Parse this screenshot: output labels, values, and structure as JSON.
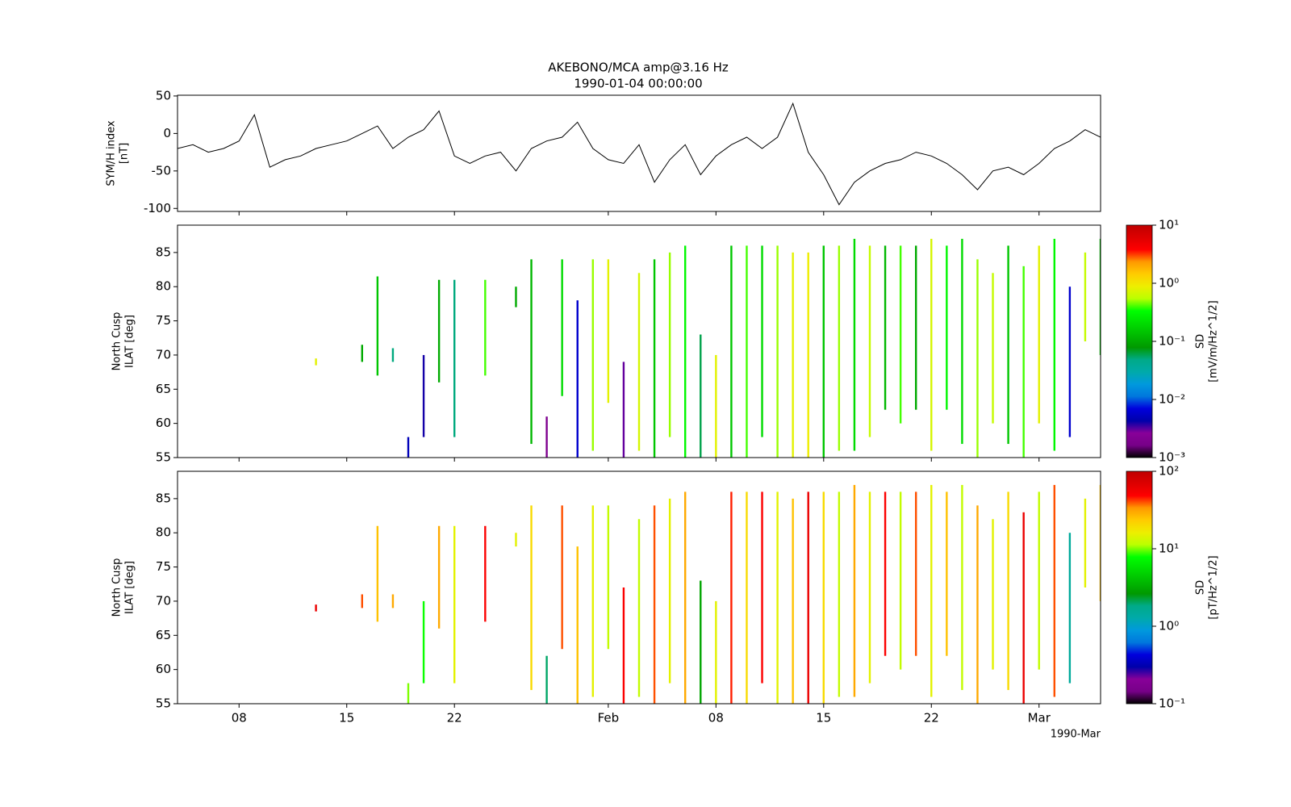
{
  "chart_data": [
    {
      "type": "line",
      "title": "AKEBONO/MCA amp@3.16 Hz",
      "subtitle": "1990-01-04 00:00:00",
      "ylabel": [
        "SYM/H index",
        "[nT]"
      ],
      "color": "#000000",
      "x": [
        "1990-01-04",
        "1990-01-05",
        "1990-01-06",
        "1990-01-07",
        "1990-01-08",
        "1990-01-09",
        "1990-01-10",
        "1990-01-11",
        "1990-01-12",
        "1990-01-13",
        "1990-01-14",
        "1990-01-15",
        "1990-01-16",
        "1990-01-17",
        "1990-01-18",
        "1990-01-19",
        "1990-01-20",
        "1990-01-21",
        "1990-01-22",
        "1990-01-23",
        "1990-01-24",
        "1990-01-25",
        "1990-01-26",
        "1990-01-27",
        "1990-01-28",
        "1990-01-29",
        "1990-01-30",
        "1990-01-31",
        "1990-02-01",
        "1990-02-02",
        "1990-02-03",
        "1990-02-04",
        "1990-02-05",
        "1990-02-06",
        "1990-02-07",
        "1990-02-08",
        "1990-02-09",
        "1990-02-10",
        "1990-02-11",
        "1990-02-12",
        "1990-02-13",
        "1990-02-14",
        "1990-02-15",
        "1990-02-16",
        "1990-02-17",
        "1990-02-18",
        "1990-02-19",
        "1990-02-20",
        "1990-02-21",
        "1990-02-22",
        "1990-02-23",
        "1990-02-24",
        "1990-02-25",
        "1990-02-26",
        "1990-02-27",
        "1990-02-28",
        "1990-03-01",
        "1990-03-02",
        "1990-03-03",
        "1990-03-04",
        "1990-03-05"
      ],
      "values": [
        -20,
        -15,
        -25,
        -20,
        -10,
        25,
        -45,
        -35,
        -30,
        -20,
        -15,
        -10,
        0,
        10,
        -20,
        -5,
        5,
        30,
        -30,
        -40,
        -30,
        -25,
        -50,
        -20,
        -10,
        -5,
        15,
        -20,
        -35,
        -40,
        -15,
        -65,
        -35,
        -15,
        -55,
        -30,
        -15,
        -5,
        -20,
        -5,
        40,
        -25,
        -55,
        -95,
        -65,
        -50,
        -40,
        -35,
        -25,
        -30,
        -40,
        -55,
        -75,
        -50,
        -45,
        -55,
        -40,
        -20,
        -10,
        5,
        -5
      ],
      "ylim": [
        -104,
        51
      ],
      "yticks": [
        -100,
        -50,
        0,
        50
      ]
    },
    {
      "type": "spectrogram",
      "ylabel": [
        "North Cusp",
        "ILAT [deg]"
      ],
      "clabel": [
        "SD",
        "[mV/m/Hz^1/2]"
      ],
      "colormap": "nipy_spectral",
      "cscale": "log",
      "clim": [
        0.001,
        10
      ],
      "cticks": [
        {
          "value": 0.001,
          "label": "10⁻³"
        },
        {
          "value": 0.01,
          "label": "10⁻²"
        },
        {
          "value": 0.1,
          "label": "10⁻¹"
        },
        {
          "value": 1,
          "label": "10⁰"
        },
        {
          "value": 10,
          "label": "10¹"
        }
      ],
      "x": [
        "1990-01-13",
        "1990-01-16",
        "1990-01-17",
        "1990-01-18",
        "1990-01-19",
        "1990-01-20",
        "1990-01-21",
        "1990-01-22",
        "1990-01-24",
        "1990-01-26",
        "1990-01-27",
        "1990-01-28",
        "1990-01-29",
        "1990-01-30",
        "1990-01-31",
        "1990-02-01",
        "1990-02-02",
        "1990-02-03",
        "1990-02-04",
        "1990-02-05",
        "1990-02-06",
        "1990-02-07",
        "1990-02-08",
        "1990-02-09",
        "1990-02-10",
        "1990-02-11",
        "1990-02-12",
        "1990-02-13",
        "1990-02-14",
        "1990-02-15",
        "1990-02-16",
        "1990-02-17",
        "1990-02-18",
        "1990-02-19",
        "1990-02-20",
        "1990-02-21",
        "1990-02-22",
        "1990-02-23",
        "1990-02-24",
        "1990-02-25",
        "1990-02-26",
        "1990-02-27",
        "1990-02-28",
        "1990-03-01",
        "1990-03-02",
        "1990-03-03",
        "1990-03-04",
        "1990-03-05"
      ],
      "y0": [
        68.5,
        69,
        67,
        69,
        55,
        58,
        66,
        58,
        67,
        77,
        57,
        55,
        64,
        55,
        56,
        63,
        55,
        56,
        55,
        58,
        55,
        55,
        55,
        55,
        55,
        58,
        55,
        55,
        55,
        55,
        56,
        56,
        58,
        62,
        60,
        62,
        56,
        62,
        57,
        55,
        60,
        57,
        55,
        60,
        56,
        58,
        72,
        70
      ],
      "y1": [
        69.5,
        71.5,
        81.5,
        71,
        58,
        70,
        81,
        81,
        81,
        80,
        84,
        61,
        84,
        78,
        84,
        84,
        69,
        82,
        84,
        85,
        86,
        73,
        70,
        86,
        86,
        86,
        86,
        85,
        85,
        86,
        86,
        87,
        86,
        86,
        86,
        86,
        87,
        86,
        87,
        84,
        82,
        86,
        83,
        86,
        87,
        80,
        85,
        87
      ],
      "values": [
        0.8,
        0.1,
        0.15,
        0.05,
        0.005,
        0.004,
        0.1,
        0.05,
        0.4,
        0.1,
        0.12,
        0.002,
        0.2,
        0.006,
        0.5,
        0.8,
        0.003,
        0.7,
        0.15,
        0.5,
        0.3,
        0.06,
        0.8,
        0.15,
        0.4,
        0.2,
        0.5,
        0.8,
        0.9,
        0.15,
        0.5,
        0.2,
        0.6,
        0.12,
        0.4,
        0.1,
        0.7,
        0.3,
        0.2,
        0.5,
        0.6,
        0.15,
        0.4,
        0.8,
        0.3,
        0.006,
        0.6,
        0.15
      ],
      "ylim": [
        55,
        89
      ],
      "yticks": [
        55,
        60,
        65,
        70,
        75,
        80,
        85
      ]
    },
    {
      "type": "spectrogram",
      "ylabel": [
        "North Cusp",
        "ILAT [deg]"
      ],
      "clabel": [
        "SD",
        "[pT/Hz^1/2]"
      ],
      "colormap": "nipy_spectral",
      "cscale": "log",
      "clim": [
        0.1,
        100
      ],
      "cticks": [
        {
          "value": 0.1,
          "label": "10⁻¹"
        },
        {
          "value": 1,
          "label": "10⁰"
        },
        {
          "value": 10,
          "label": "10¹"
        },
        {
          "value": 100,
          "label": "10²"
        }
      ],
      "x": [
        "1990-01-13",
        "1990-01-16",
        "1990-01-17",
        "1990-01-18",
        "1990-01-19",
        "1990-01-20",
        "1990-01-21",
        "1990-01-22",
        "1990-01-24",
        "1990-01-26",
        "1990-01-27",
        "1990-01-28",
        "1990-01-29",
        "1990-01-30",
        "1990-01-31",
        "1990-02-01",
        "1990-02-02",
        "1990-02-03",
        "1990-02-04",
        "1990-02-05",
        "1990-02-06",
        "1990-02-07",
        "1990-02-08",
        "1990-02-09",
        "1990-02-10",
        "1990-02-11",
        "1990-02-12",
        "1990-02-13",
        "1990-02-14",
        "1990-02-15",
        "1990-02-16",
        "1990-02-17",
        "1990-02-18",
        "1990-02-19",
        "1990-02-20",
        "1990-02-21",
        "1990-02-22",
        "1990-02-23",
        "1990-02-24",
        "1990-02-25",
        "1990-02-26",
        "1990-02-27",
        "1990-02-28",
        "1990-03-01",
        "1990-03-02",
        "1990-03-03",
        "1990-03-04",
        "1990-03-05"
      ],
      "y0": [
        68.5,
        69,
        67,
        69,
        55,
        58,
        66,
        58,
        67,
        78,
        57,
        55,
        63,
        55,
        56,
        63,
        55,
        56,
        55,
        58,
        55,
        55,
        55,
        55,
        55,
        58,
        55,
        55,
        55,
        55,
        56,
        56,
        58,
        62,
        60,
        62,
        56,
        62,
        57,
        55,
        60,
        57,
        55,
        60,
        56,
        58,
        72,
        70
      ],
      "y1": [
        69.5,
        71,
        81,
        71,
        58,
        70,
        81,
        81,
        81,
        80,
        84,
        62,
        84,
        78,
        84,
        84,
        72,
        82,
        84,
        85,
        86,
        73,
        70,
        86,
        86,
        86,
        86,
        85,
        86,
        86,
        86,
        87,
        86,
        86,
        86,
        86,
        87,
        86,
        87,
        84,
        82,
        86,
        83,
        86,
        87,
        80,
        85,
        87
      ],
      "values": [
        60,
        40,
        25,
        30,
        10,
        8,
        30,
        15,
        50,
        15,
        20,
        2,
        40,
        25,
        15,
        12,
        50,
        12,
        40,
        15,
        30,
        3,
        15,
        45,
        20,
        50,
        15,
        25,
        60,
        20,
        12,
        30,
        15,
        50,
        12,
        40,
        15,
        25,
        12,
        30,
        15,
        20,
        60,
        12,
        40,
        1.5,
        15,
        25
      ],
      "ylim": [
        55,
        89
      ],
      "yticks": [
        55,
        60,
        65,
        70,
        75,
        80,
        85
      ],
      "xlim": [
        "1990-01-04",
        "1990-03-05"
      ],
      "xticks": [
        {
          "value": "1990-01-08",
          "label": "08"
        },
        {
          "value": "1990-01-15",
          "label": "15"
        },
        {
          "value": "1990-01-22",
          "label": "22"
        },
        {
          "value": "1990-02-01",
          "label": "Feb"
        },
        {
          "value": "1990-02-08",
          "label": "08"
        },
        {
          "value": "1990-02-15",
          "label": "15"
        },
        {
          "value": "1990-02-22",
          "label": "22"
        },
        {
          "value": "1990-03-01",
          "label": "Mar"
        }
      ],
      "xoffset_label": "1990-Mar"
    }
  ]
}
